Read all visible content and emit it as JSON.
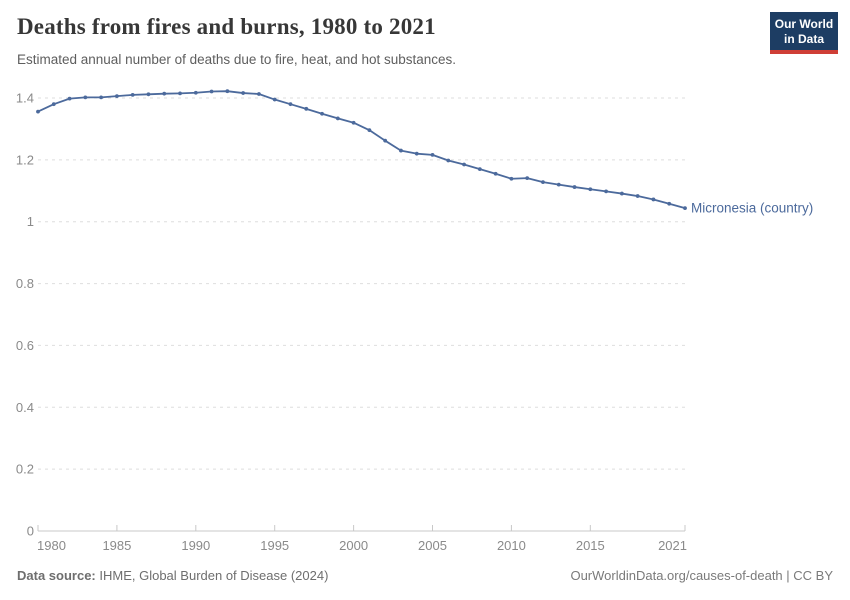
{
  "header": {
    "title": "Deaths from fires and burns, 1980 to 2021",
    "subtitle": "Estimated annual number of deaths due to fire, heat, and hot substances."
  },
  "logo": {
    "line1": "Our World",
    "line2": "in Data",
    "bg_color": "#1d3d63",
    "accent_color": "#cf3e36"
  },
  "footer": {
    "source_label": "Data source:",
    "source_value": "IHME, Global Burden of Disease (2024)",
    "attribution": "OurWorldinData.org/causes-of-death | CC BY"
  },
  "chart_data": {
    "type": "line",
    "title": "Deaths from fires and burns, 1980 to 2021",
    "subtitle": "Estimated annual number of deaths due to fire, heat, and hot substances.",
    "xlabel": "",
    "ylabel": "",
    "grid": "horizontal-dashed",
    "legend_position": "end-of-line-label",
    "ylim": [
      0,
      1.4
    ],
    "yticks": [
      0,
      0.2,
      0.4,
      0.6,
      0.8,
      1,
      1.2,
      1.4
    ],
    "ytick_labels": [
      "0",
      "0.2",
      "0.4",
      "0.6",
      "0.8",
      "1",
      "1.2",
      "1.4"
    ],
    "xticks": [
      1980,
      1985,
      1990,
      1995,
      2000,
      2005,
      2010,
      2015,
      2021
    ],
    "x": [
      1980,
      1981,
      1982,
      1983,
      1984,
      1985,
      1986,
      1987,
      1988,
      1989,
      1990,
      1991,
      1992,
      1993,
      1994,
      1995,
      1996,
      1997,
      1998,
      1999,
      2000,
      2001,
      2002,
      2003,
      2004,
      2005,
      2006,
      2007,
      2008,
      2009,
      2010,
      2011,
      2012,
      2013,
      2014,
      2015,
      2016,
      2017,
      2018,
      2019,
      2020,
      2021
    ],
    "series": [
      {
        "name": "Micronesia (country)",
        "color": "#4C6A9C",
        "values": [
          1.356,
          1.38,
          1.398,
          1.402,
          1.402,
          1.406,
          1.41,
          1.412,
          1.414,
          1.415,
          1.417,
          1.421,
          1.422,
          1.416,
          1.413,
          1.395,
          1.38,
          1.365,
          1.349,
          1.334,
          1.32,
          1.296,
          1.262,
          1.23,
          1.22,
          1.216,
          1.198,
          1.185,
          1.17,
          1.155,
          1.139,
          1.141,
          1.128,
          1.12,
          1.112,
          1.105,
          1.098,
          1.091,
          1.083,
          1.072,
          1.058,
          1.044
        ]
      }
    ],
    "end_label": "Micronesia (country)"
  }
}
